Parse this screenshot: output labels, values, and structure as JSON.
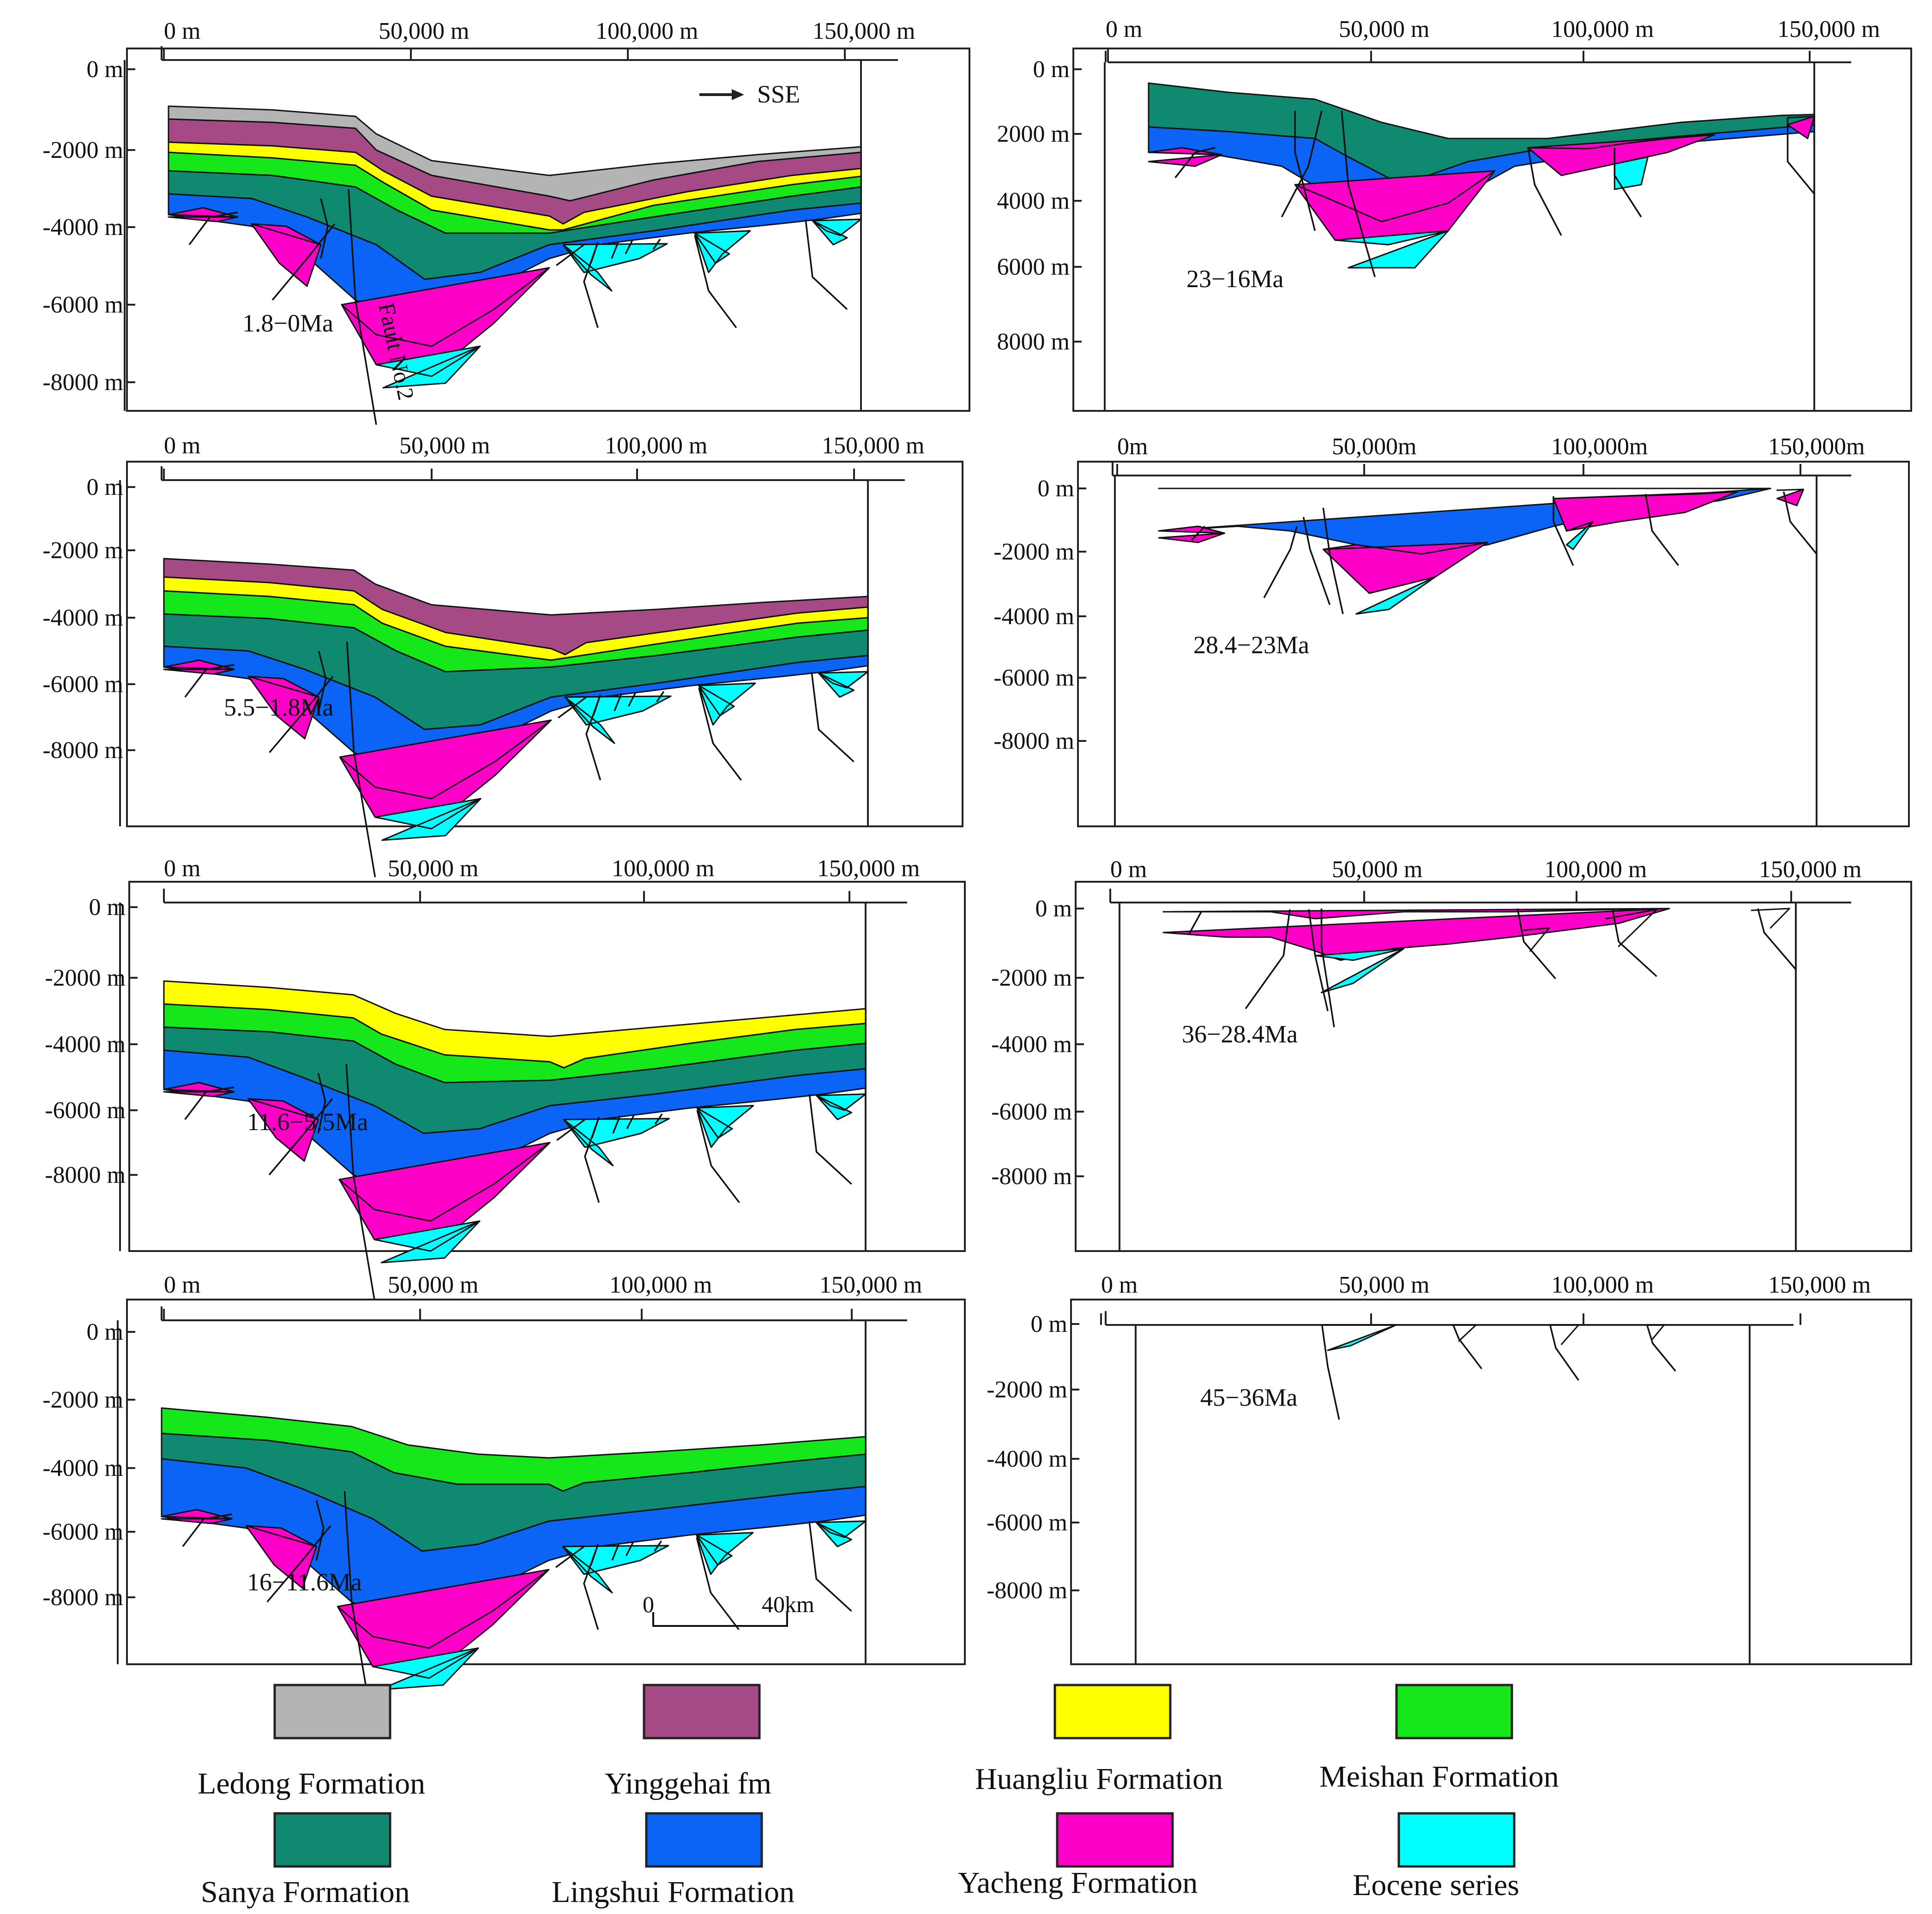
{
  "formations": [
    {
      "key": "ledong",
      "name": "Ledong Formation",
      "color": "#b4b4b4"
    },
    {
      "key": "yinggehai",
      "name": "Yinggehai fm",
      "color": "#a64a86"
    },
    {
      "key": "huangliu",
      "name": "Huangliu Formation",
      "color": "#ffff00"
    },
    {
      "key": "meishan",
      "name": "Meishan Formation",
      "color": "#16e71a"
    },
    {
      "key": "sanya",
      "name": "Sanya Formation",
      "color": "#0f8a70"
    },
    {
      "key": "lingshui",
      "name": "Lingshui Formation",
      "color": "#0b64f5"
    },
    {
      "key": "yacheng",
      "name": "Yacheng Formation",
      "color": "#ff00c8"
    },
    {
      "key": "eocene",
      "name": "Eocene series",
      "color": "#00ffff"
    }
  ],
  "axes": {
    "x_ticks": [
      "0 m",
      "50,000 m",
      "100,000 m",
      "150,000 m"
    ],
    "y_ticks": [
      "0 m",
      "-2000 m",
      "-4000 m",
      "-6000 m",
      "-8000 m"
    ],
    "y_ticks_right_top": [
      "0 m",
      "2000 m",
      "4000 m",
      "6000 m",
      "8000 m"
    ],
    "y_ticks_right_low": [
      "0 m",
      "-2000 m",
      "-4000 m",
      "-6000 m",
      "-8000 m"
    ],
    "x_tick_variant": [
      "0m",
      "50,000m",
      "100,000m",
      "150,000m"
    ]
  },
  "panels": [
    {
      "id": "p1",
      "age": "1.8−0Ma"
    },
    {
      "id": "p2",
      "age": "23−16Ma"
    },
    {
      "id": "p3",
      "age": "5.5−1.8Ma"
    },
    {
      "id": "p4",
      "age": "28.4−23Ma"
    },
    {
      "id": "p5",
      "age": "11.6−5.5Ma"
    },
    {
      "id": "p6",
      "age": "36−28.4Ma"
    },
    {
      "id": "p7",
      "age": "16−11.6Ma"
    },
    {
      "id": "p8",
      "age": "45−36Ma"
    }
  ],
  "annotations": {
    "direction": "SSE",
    "fault_label": "Fault No.2",
    "scale_bar": {
      "start": "0",
      "end": "40km"
    }
  }
}
